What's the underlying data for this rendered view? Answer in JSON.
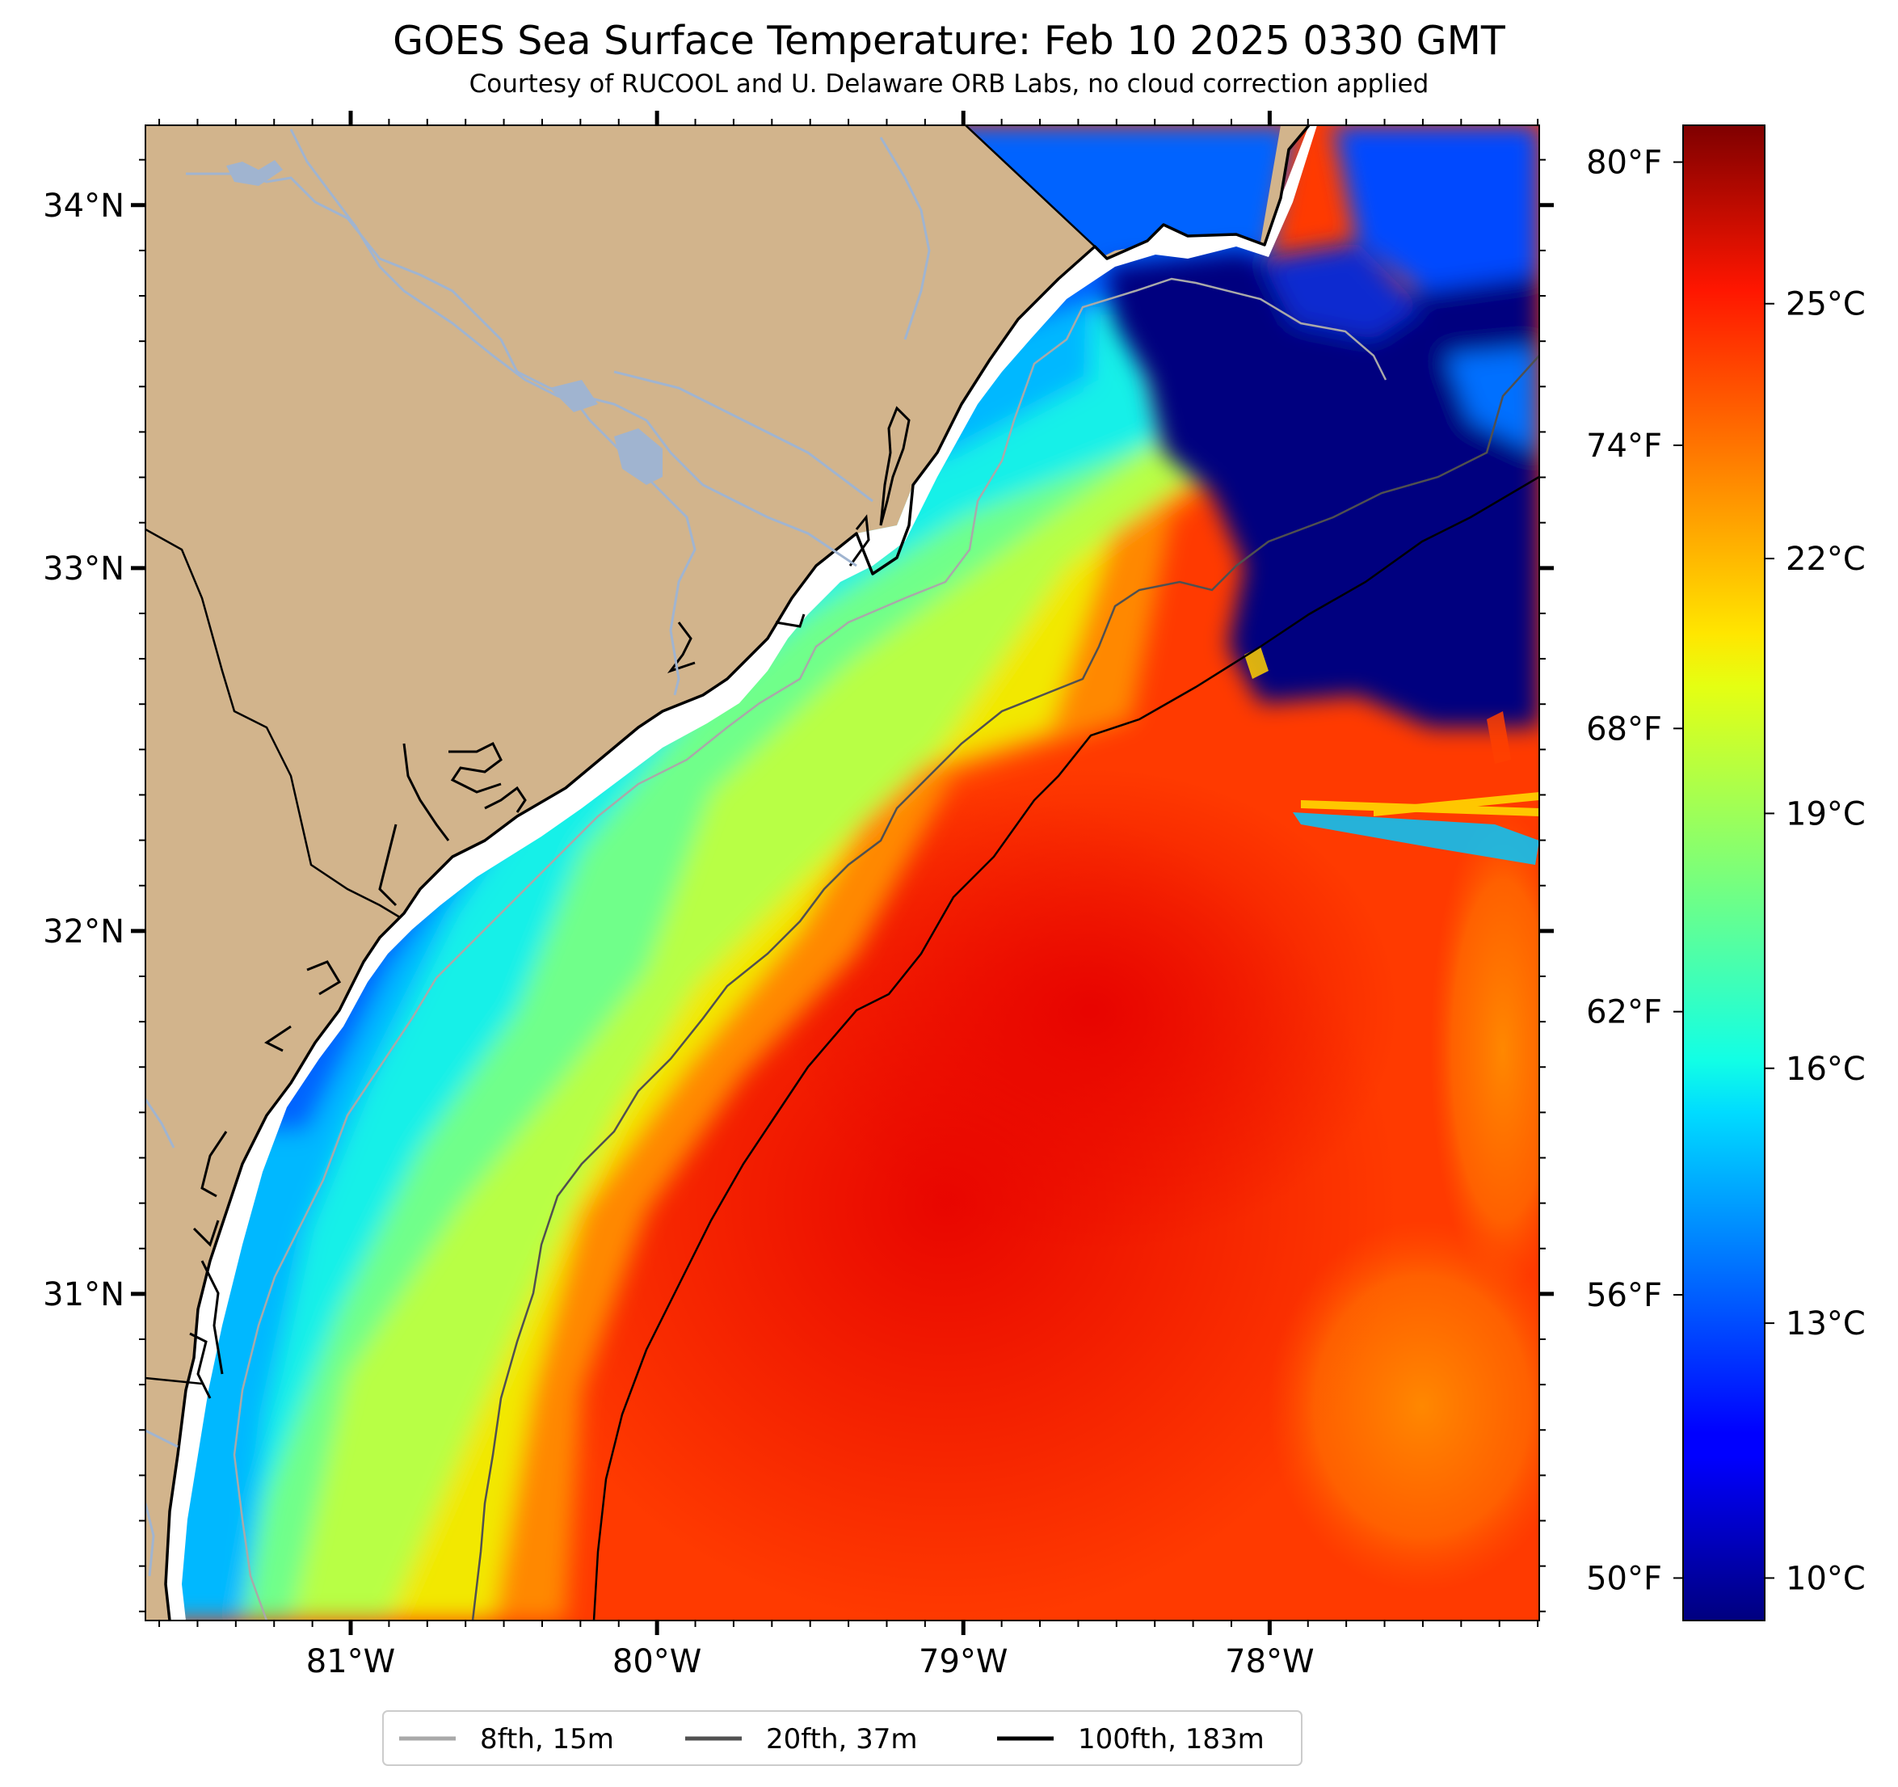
{
  "figure": {
    "title": "GOES Sea Surface Temperature: Feb 10 2025 0330 GMT",
    "subtitle": "Courtesy of RUCOOL and U. Delaware ORB Labs, no cloud correction applied"
  },
  "map": {
    "lon_range": [
      -81.67,
      -77.12
    ],
    "lat_range": [
      30.1,
      34.22
    ],
    "lon_ticks": [
      {
        "value": -81,
        "label": "81°W"
      },
      {
        "value": -80,
        "label": "80°W"
      },
      {
        "value": -79,
        "label": "79°W"
      },
      {
        "value": -78,
        "label": "78°W"
      }
    ],
    "lat_ticks": [
      {
        "value": 34,
        "label": "34°N"
      },
      {
        "value": 33,
        "label": "33°N"
      },
      {
        "value": 32,
        "label": "32°N"
      },
      {
        "value": 31,
        "label": "31°N"
      }
    ],
    "colors": {
      "land": "#d2b48c",
      "rivers": "#a0b4d0",
      "coastline": "#000000"
    }
  },
  "colorbar": {
    "range_c": [
      9.5,
      27.1
    ],
    "colormap": "jet",
    "celsius_ticks": [
      {
        "value": 25,
        "label": "25°C"
      },
      {
        "value": 22,
        "label": "22°C"
      },
      {
        "value": 19,
        "label": "19°C"
      },
      {
        "value": 16,
        "label": "16°C"
      },
      {
        "value": 13,
        "label": "13°C"
      },
      {
        "value": 10,
        "label": "10°C"
      }
    ],
    "fahrenheit_ticks": [
      {
        "value": 80,
        "label": "80°F"
      },
      {
        "value": 74,
        "label": "74°F"
      },
      {
        "value": 68,
        "label": "68°F"
      },
      {
        "value": 62,
        "label": "62°F"
      },
      {
        "value": 56,
        "label": "56°F"
      },
      {
        "value": 50,
        "label": "50°F"
      }
    ]
  },
  "legend": {
    "entries": [
      {
        "label": "8fth, 15m",
        "color": "#a9a9a9"
      },
      {
        "label": "20fth, 37m",
        "color": "#505050"
      },
      {
        "label": "100fth, 183m",
        "color": "#000000"
      }
    ]
  }
}
